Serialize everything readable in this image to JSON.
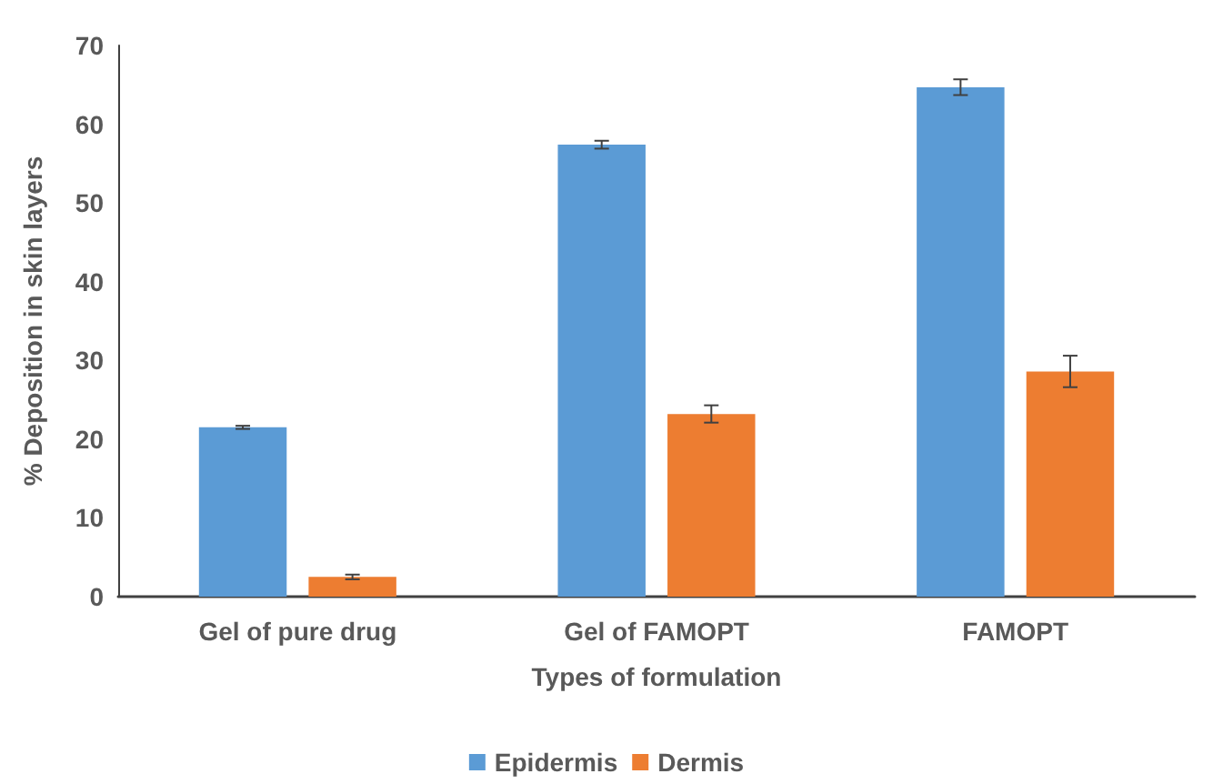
{
  "chart_data": {
    "type": "bar",
    "xlabel": "Types of formulation",
    "ylabel": "% Deposition in skin layers",
    "categories": [
      "Gel of pure drug",
      "Gel of FAMOPT",
      "FAMOPT"
    ],
    "series": [
      {
        "name": "Epidermis",
        "color": "#5b9bd5",
        "values": [
          21.5,
          57.4,
          64.7
        ],
        "errors": [
          0.2,
          0.5,
          1.0
        ]
      },
      {
        "name": "Dermis",
        "color": "#ed7d31",
        "values": [
          2.5,
          23.2,
          28.6
        ],
        "errors": [
          0.3,
          1.1,
          2.0
        ]
      }
    ],
    "ylim": [
      0,
      70
    ],
    "yticks": [
      0,
      10,
      20,
      30,
      40,
      50,
      60,
      70
    ],
    "grid": false,
    "legend": "bottom"
  }
}
